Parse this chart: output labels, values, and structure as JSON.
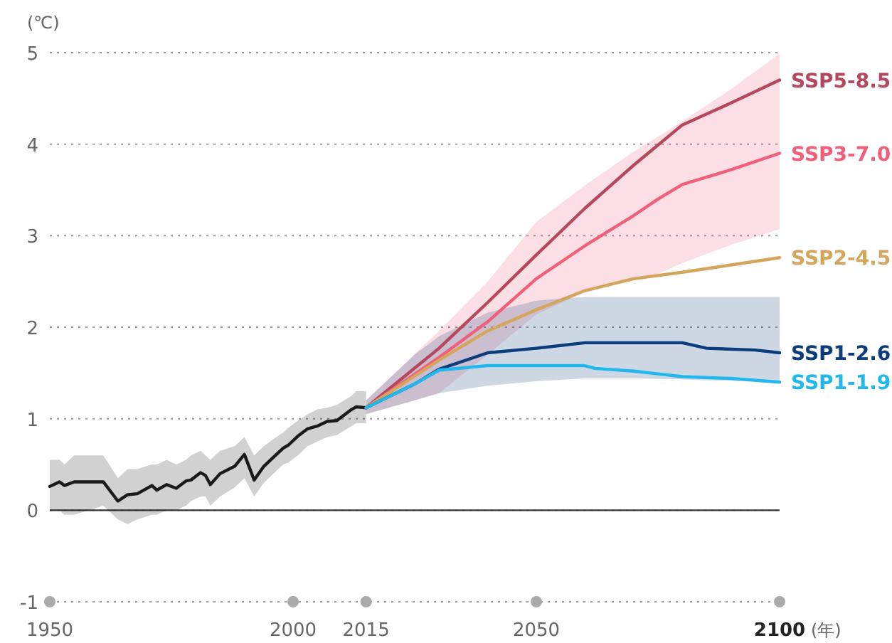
{
  "chart_data": {
    "type": "line",
    "ylabel": "(℃)",
    "xlabel": "(年)",
    "xlim": [
      1950,
      2100
    ],
    "ylim": [
      -1,
      5
    ],
    "xticks": [
      1950,
      2000,
      2015,
      2050,
      2100
    ],
    "yticks": [
      -1,
      0,
      1,
      2,
      3,
      4,
      5
    ],
    "grid": "y",
    "ref_lines": [
      {
        "axis": "y",
        "value": 0,
        "color": "#333333",
        "line_style": "solid"
      }
    ],
    "series": [
      {
        "color": "#1a1a1a",
        "x": [
          1950,
          1952,
          1953,
          1955,
          1961,
          1964,
          1966,
          1968,
          1971,
          1972,
          1974,
          1976,
          1978,
          1979,
          1981,
          1982,
          1983,
          1985,
          1988,
          1990,
          1992,
          1994,
          1996,
          1998,
          1999,
          2001,
          2003,
          2005,
          2007,
          2009,
          2012,
          2013,
          2015
        ],
        "values": [
          0.26,
          0.31,
          0.27,
          0.31,
          0.31,
          0.1,
          0.17,
          0.18,
          0.27,
          0.22,
          0.28,
          0.24,
          0.32,
          0.33,
          0.41,
          0.38,
          0.28,
          0.4,
          0.48,
          0.61,
          0.33,
          0.48,
          0.58,
          0.68,
          0.71,
          0.81,
          0.89,
          0.92,
          0.97,
          0.98,
          1.1,
          1.13,
          1.12
        ],
        "lower": [
          0,
          0,
          -0.05,
          -0.05,
          0.05,
          -0.1,
          -0.15,
          -0.1,
          -0.05,
          -0.05,
          0,
          0,
          0.05,
          0.1,
          0.15,
          0.15,
          0.05,
          0.15,
          0.25,
          0.35,
          0.15,
          0.3,
          0.4,
          0.5,
          0.52,
          0.6,
          0.7,
          0.75,
          0.8,
          0.82,
          0.92,
          0.95,
          0.95
        ],
        "upper": [
          0.55,
          0.55,
          0.5,
          0.6,
          0.6,
          0.35,
          0.45,
          0.45,
          0.5,
          0.5,
          0.55,
          0.5,
          0.55,
          0.6,
          0.65,
          0.6,
          0.55,
          0.65,
          0.7,
          0.8,
          0.6,
          0.7,
          0.78,
          0.85,
          0.9,
          0.98,
          1.05,
          1.1,
          1.12,
          1.15,
          1.25,
          1.3,
          1.3
        ]
      },
      {
        "name": "SSP5-8.5",
        "color": "#b5475e",
        "x": [
          2015,
          2030,
          2040,
          2050,
          2060,
          2070,
          2080,
          2090,
          2100
        ],
        "values": [
          1.12,
          1.77,
          2.27,
          2.79,
          3.3,
          3.77,
          4.21,
          4.45,
          4.7
        ]
      },
      {
        "name": "SSP3-7.0",
        "color": "#f0607a",
        "x": [
          2015,
          2030,
          2040,
          2050,
          2060,
          2070,
          2075,
          2080,
          2090,
          2100
        ],
        "values": [
          1.12,
          1.67,
          2.06,
          2.53,
          2.89,
          3.22,
          3.4,
          3.56,
          3.72,
          3.9
        ],
        "lower": [
          1.05,
          1.28,
          1.7,
          2.14,
          2.38,
          2.53,
          2.58,
          2.7,
          2.9,
          3.07
        ],
        "upper": [
          1.2,
          1.96,
          2.5,
          3.15,
          3.55,
          3.92,
          4.08,
          4.25,
          4.6,
          4.99
        ]
      },
      {
        "name": "SSP2-4.5",
        "color": "#d4a55a",
        "x": [
          2015,
          2030,
          2040,
          2050,
          2060,
          2070,
          2080,
          2090,
          2100
        ],
        "values": [
          1.12,
          1.64,
          1.96,
          2.19,
          2.4,
          2.53,
          2.6,
          2.68,
          2.76
        ]
      },
      {
        "name": "SSP1-2.6",
        "color": "#0c3c7c",
        "x": [
          2015,
          2025,
          2030,
          2040,
          2050,
          2060,
          2070,
          2080,
          2085,
          2095,
          2100
        ],
        "values": [
          1.12,
          1.38,
          1.54,
          1.72,
          1.77,
          1.83,
          1.83,
          1.83,
          1.77,
          1.75,
          1.72
        ],
        "lower": [
          1.05,
          1.2,
          1.28,
          1.36,
          1.41,
          1.44,
          1.44,
          1.43,
          1.42,
          1.41,
          1.4
        ],
        "upper": [
          1.2,
          1.7,
          1.9,
          2.16,
          2.29,
          2.33,
          2.33,
          2.33,
          2.33,
          2.33,
          2.33
        ]
      },
      {
        "name": "SSP1-1.9",
        "color": "#22b8ec",
        "x": [
          2015,
          2025,
          2030,
          2040,
          2050,
          2060,
          2062,
          2070,
          2075,
          2080,
          2090,
          2100
        ],
        "values": [
          1.12,
          1.38,
          1.53,
          1.58,
          1.58,
          1.58,
          1.55,
          1.52,
          1.49,
          1.46,
          1.44,
          1.4
        ]
      }
    ]
  }
}
